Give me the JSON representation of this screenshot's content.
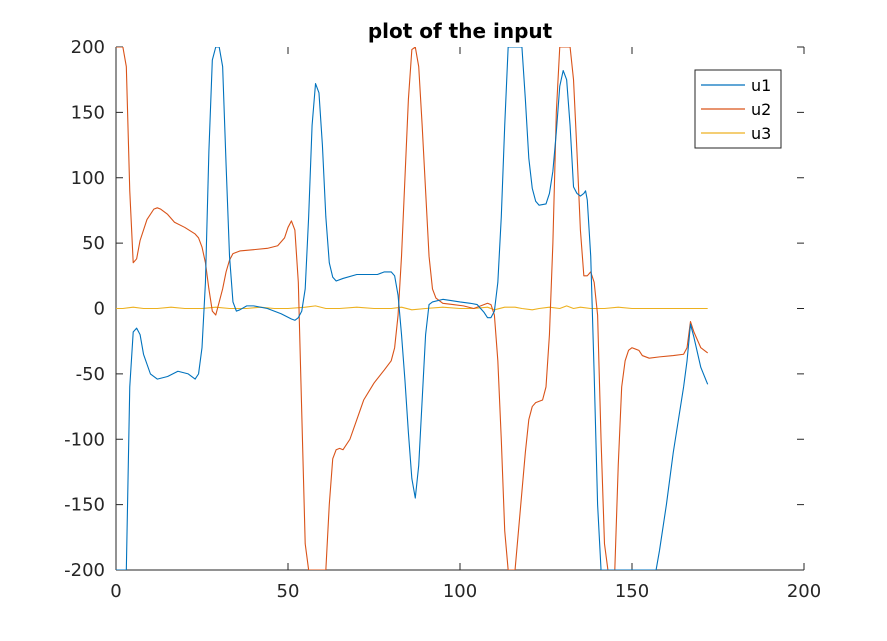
{
  "chart_data": {
    "type": "line",
    "title": "plot of the input",
    "xlabel": "",
    "ylabel": "",
    "xlim": [
      0,
      200
    ],
    "ylim": [
      -200,
      200
    ],
    "xticks": [
      0,
      50,
      100,
      150,
      200
    ],
    "yticks": [
      -200,
      -150,
      -100,
      -50,
      0,
      50,
      100,
      150,
      200
    ],
    "grid": false,
    "legend_position": "top-right",
    "series": [
      {
        "name": "u1",
        "color": "#0072BD",
        "points": [
          [
            0,
            -200
          ],
          [
            3,
            -200
          ],
          [
            4,
            -60
          ],
          [
            5,
            -18
          ],
          [
            6,
            -15
          ],
          [
            7,
            -20
          ],
          [
            8,
            -35
          ],
          [
            10,
            -50
          ],
          [
            12,
            -54
          ],
          [
            15,
            -52
          ],
          [
            18,
            -48
          ],
          [
            21,
            -50
          ],
          [
            23,
            -54
          ],
          [
            24,
            -50
          ],
          [
            25,
            -30
          ],
          [
            26,
            20
          ],
          [
            27,
            120
          ],
          [
            28,
            190
          ],
          [
            29,
            200
          ],
          [
            30,
            200
          ],
          [
            31,
            185
          ],
          [
            32,
            110
          ],
          [
            33,
            40
          ],
          [
            34,
            5
          ],
          [
            35,
            -2
          ],
          [
            36,
            -1
          ],
          [
            38,
            2
          ],
          [
            40,
            2
          ],
          [
            44,
            0
          ],
          [
            48,
            -4
          ],
          [
            51,
            -8
          ],
          [
            52,
            -9
          ],
          [
            53,
            -7
          ],
          [
            54,
            -2
          ],
          [
            55,
            15
          ],
          [
            56,
            70
          ],
          [
            57,
            140
          ],
          [
            58,
            172
          ],
          [
            59,
            165
          ],
          [
            60,
            125
          ],
          [
            61,
            70
          ],
          [
            62,
            35
          ],
          [
            63,
            24
          ],
          [
            64,
            21
          ],
          [
            66,
            23
          ],
          [
            70,
            26
          ],
          [
            73,
            26
          ],
          [
            76,
            26
          ],
          [
            78,
            28
          ],
          [
            80,
            28
          ],
          [
            81,
            25
          ],
          [
            82,
            10
          ],
          [
            83,
            -20
          ],
          [
            84,
            -55
          ],
          [
            85,
            -95
          ],
          [
            86,
            -130
          ],
          [
            87,
            -145
          ],
          [
            88,
            -120
          ],
          [
            89,
            -70
          ],
          [
            90,
            -20
          ],
          [
            91,
            3
          ],
          [
            92,
            5
          ],
          [
            95,
            7
          ],
          [
            100,
            5
          ],
          [
            103,
            4
          ],
          [
            105,
            3
          ],
          [
            107,
            -3
          ],
          [
            108,
            -7
          ],
          [
            109,
            -7
          ],
          [
            110,
            -2
          ],
          [
            111,
            20
          ],
          [
            112,
            70
          ],
          [
            113,
            140
          ],
          [
            114,
            200
          ],
          [
            118,
            200
          ],
          [
            119,
            160
          ],
          [
            120,
            115
          ],
          [
            121,
            92
          ],
          [
            122,
            82
          ],
          [
            123,
            79
          ],
          [
            125,
            80
          ],
          [
            126,
            88
          ],
          [
            127,
            105
          ],
          [
            128,
            135
          ],
          [
            129,
            170
          ],
          [
            130,
            182
          ],
          [
            131,
            175
          ],
          [
            132,
            140
          ],
          [
            133,
            93
          ],
          [
            134,
            88
          ],
          [
            135,
            86
          ],
          [
            136,
            88
          ],
          [
            136.5,
            90
          ],
          [
            137,
            83
          ],
          [
            138,
            40
          ],
          [
            139,
            -50
          ],
          [
            140,
            -150
          ],
          [
            141,
            -200
          ],
          [
            157,
            -200
          ],
          [
            158,
            -185
          ],
          [
            160,
            -150
          ],
          [
            162,
            -110
          ],
          [
            165,
            -60
          ],
          [
            166,
            -40
          ],
          [
            167,
            -12
          ],
          [
            168,
            -22
          ],
          [
            170,
            -45
          ],
          [
            172,
            -58
          ]
        ]
      },
      {
        "name": "u2",
        "color": "#D95319",
        "points": [
          [
            0,
            200
          ],
          [
            2,
            200
          ],
          [
            3,
            185
          ],
          [
            4,
            90
          ],
          [
            5,
            35
          ],
          [
            6,
            38
          ],
          [
            7,
            52
          ],
          [
            9,
            68
          ],
          [
            11,
            76
          ],
          [
            12,
            77
          ],
          [
            13,
            76
          ],
          [
            15,
            72
          ],
          [
            17,
            66
          ],
          [
            20,
            62
          ],
          [
            23,
            57
          ],
          [
            24,
            54
          ],
          [
            25,
            47
          ],
          [
            26,
            35
          ],
          [
            27,
            15
          ],
          [
            28,
            -2
          ],
          [
            29,
            -5
          ],
          [
            30,
            5
          ],
          [
            31,
            15
          ],
          [
            32,
            28
          ],
          [
            33,
            37
          ],
          [
            34,
            42
          ],
          [
            36,
            44
          ],
          [
            40,
            45
          ],
          [
            44,
            46
          ],
          [
            47,
            48
          ],
          [
            49,
            54
          ],
          [
            50,
            62
          ],
          [
            51,
            67
          ],
          [
            52,
            60
          ],
          [
            53,
            20
          ],
          [
            54,
            -80
          ],
          [
            55,
            -180
          ],
          [
            56,
            -200
          ],
          [
            61,
            -200
          ],
          [
            62,
            -150
          ],
          [
            63,
            -115
          ],
          [
            64,
            -108
          ],
          [
            65,
            -107
          ],
          [
            66,
            -108
          ],
          [
            68,
            -100
          ],
          [
            70,
            -85
          ],
          [
            72,
            -70
          ],
          [
            75,
            -57
          ],
          [
            78,
            -47
          ],
          [
            80,
            -40
          ],
          [
            81,
            -30
          ],
          [
            82,
            -5
          ],
          [
            83,
            40
          ],
          [
            84,
            100
          ],
          [
            85,
            160
          ],
          [
            86,
            198
          ],
          [
            87,
            200
          ],
          [
            88,
            185
          ],
          [
            89,
            140
          ],
          [
            90,
            90
          ],
          [
            91,
            40
          ],
          [
            92,
            15
          ],
          [
            93,
            8
          ],
          [
            95,
            4
          ],
          [
            98,
            3
          ],
          [
            101,
            2
          ],
          [
            104,
            0
          ],
          [
            106,
            2
          ],
          [
            108,
            4
          ],
          [
            109,
            3
          ],
          [
            110,
            -5
          ],
          [
            111,
            -40
          ],
          [
            112,
            -100
          ],
          [
            113,
            -170
          ],
          [
            114,
            -200
          ],
          [
            116,
            -200
          ],
          [
            117,
            -170
          ],
          [
            118,
            -140
          ],
          [
            119,
            -110
          ],
          [
            120,
            -85
          ],
          [
            121,
            -75
          ],
          [
            122,
            -72
          ],
          [
            124,
            -70
          ],
          [
            125,
            -60
          ],
          [
            126,
            -20
          ],
          [
            127,
            50
          ],
          [
            128,
            150
          ],
          [
            129,
            200
          ],
          [
            132,
            200
          ],
          [
            133,
            175
          ],
          [
            134,
            120
          ],
          [
            135,
            60
          ],
          [
            136,
            25
          ],
          [
            137,
            25
          ],
          [
            138,
            28
          ],
          [
            139,
            20
          ],
          [
            140,
            -5
          ],
          [
            141,
            -100
          ],
          [
            142,
            -180
          ],
          [
            143,
            -200
          ],
          [
            145,
            -200
          ],
          [
            146,
            -120
          ],
          [
            147,
            -60
          ],
          [
            148,
            -40
          ],
          [
            149,
            -32
          ],
          [
            150,
            -30
          ],
          [
            152,
            -32
          ],
          [
            153,
            -36
          ],
          [
            155,
            -38
          ],
          [
            158,
            -37
          ],
          [
            162,
            -36
          ],
          [
            165,
            -35
          ],
          [
            166,
            -30
          ],
          [
            167,
            -10
          ],
          [
            168,
            -18
          ],
          [
            170,
            -30
          ],
          [
            172,
            -34
          ]
        ]
      },
      {
        "name": "u3",
        "color": "#EDB120",
        "points": [
          [
            0,
            0
          ],
          [
            2,
            0
          ],
          [
            5,
            1
          ],
          [
            8,
            0
          ],
          [
            12,
            0
          ],
          [
            16,
            1
          ],
          [
            20,
            0
          ],
          [
            25,
            0
          ],
          [
            29,
            1
          ],
          [
            33,
            0
          ],
          [
            38,
            0
          ],
          [
            42,
            1
          ],
          [
            46,
            0
          ],
          [
            50,
            0
          ],
          [
            55,
            1
          ],
          [
            58,
            2
          ],
          [
            61,
            0
          ],
          [
            65,
            0
          ],
          [
            70,
            1
          ],
          [
            75,
            0
          ],
          [
            80,
            0
          ],
          [
            83,
            1
          ],
          [
            86,
            -1
          ],
          [
            90,
            0
          ],
          [
            95,
            1
          ],
          [
            100,
            0
          ],
          [
            104,
            0
          ],
          [
            108,
            1
          ],
          [
            110,
            -1
          ],
          [
            113,
            1
          ],
          [
            116,
            1
          ],
          [
            118,
            0
          ],
          [
            121,
            -1
          ],
          [
            123,
            0
          ],
          [
            126,
            1
          ],
          [
            129,
            0
          ],
          [
            131,
            2
          ],
          [
            133,
            0
          ],
          [
            135,
            1
          ],
          [
            138,
            0
          ],
          [
            142,
            0
          ],
          [
            146,
            1
          ],
          [
            150,
            0
          ],
          [
            155,
            0
          ],
          [
            160,
            0
          ],
          [
            165,
            0
          ],
          [
            168,
            0
          ],
          [
            172,
            0
          ]
        ]
      }
    ]
  }
}
